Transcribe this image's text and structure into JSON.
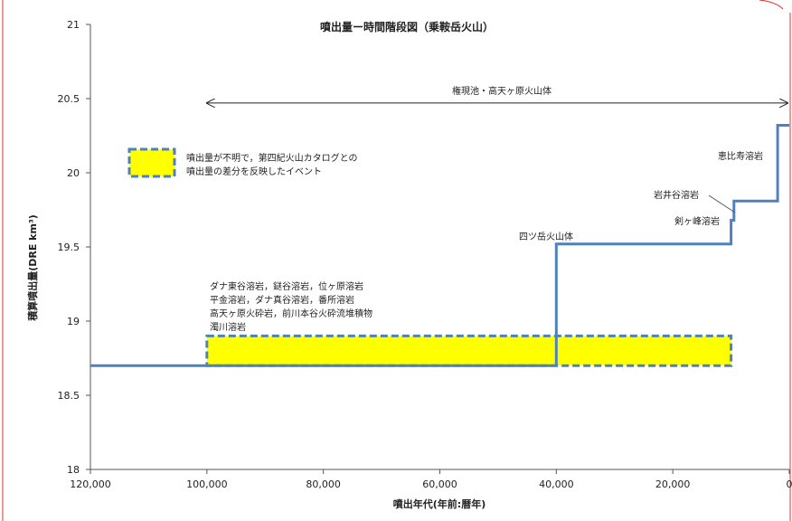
{
  "chart_data": {
    "type": "line",
    "title": "噴出量ー時間階段図（乗鞍岳火山）",
    "xlabel": "噴出年代(年前:暦年)",
    "ylabel": "積算噴出量(DRE km³)",
    "xlim": [
      120000,
      0
    ],
    "ylim": [
      18,
      21
    ],
    "x_ticks": [
      "120,000",
      "100,000",
      "80,000",
      "60,000",
      "40,000",
      "20,000",
      "0"
    ],
    "x_tick_values": [
      120000,
      100000,
      80000,
      60000,
      40000,
      20000,
      0
    ],
    "y_ticks": [
      "21",
      "20.5",
      "20",
      "19.5",
      "19",
      "18.5",
      "18"
    ],
    "y_tick_values": [
      21,
      20.5,
      20,
      19.5,
      19,
      18.5,
      18
    ],
    "grid": false,
    "series": [
      {
        "color": "#4f81bd",
        "step_x": [
          120000,
          40000,
          40000,
          10000,
          10000,
          9500,
          9500,
          2000,
          2000,
          0
        ],
        "step_y": [
          18.7,
          18.7,
          19.52,
          19.52,
          19.68,
          19.68,
          19.81,
          19.81,
          20.32,
          20.32
        ]
      }
    ],
    "uncertain_box": {
      "x_range": [
        100000,
        10000
      ],
      "y_range": [
        18.7,
        18.9
      ],
      "fill": "#ffff00",
      "border": "#4f81bd"
    },
    "span_arrow": {
      "label": "権現池・高天ヶ原火山体",
      "x_range": [
        100000,
        0
      ],
      "y": 20.47
    },
    "legend": {
      "label_lines": [
        "噴出量が不明で，第四紀火山カタログとの",
        "噴出量の差分を反映したイベント"
      ],
      "placement": "top-left"
    },
    "annotations": [
      {
        "id": "yotsudake",
        "text": "四ツ岳火山体",
        "x": 40000,
        "y": 19.52
      },
      {
        "id": "ebisu",
        "text": "恵比寿溶岩",
        "x": 2000,
        "y": 20.07
      },
      {
        "id": "iwaidani",
        "text": "岩井谷溶岩",
        "x": 9500,
        "y": 19.83
      },
      {
        "id": "tsurugigamine",
        "text": "剣ヶ峰溶岩",
        "x": 9500,
        "y": 19.62
      }
    ],
    "block_annotation": {
      "lines": [
        "ダナ東谷溶岩，鎹谷溶岩，位ヶ原溶岩",
        "平金溶岩，ダナ真谷溶岩，番所溶岩",
        "高天ヶ原火砕岩，前川本谷火砕流堆積物",
        "濁川溶岩"
      ]
    }
  }
}
